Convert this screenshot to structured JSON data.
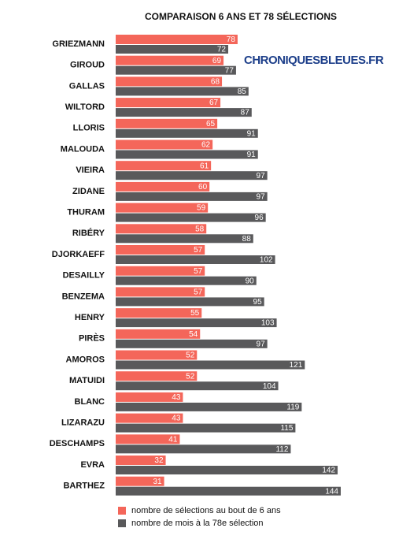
{
  "chart_data": {
    "type": "bar",
    "orientation": "horizontal",
    "title": "COMPARAISON 6 ANS ET 78 SÉLECTIONS",
    "watermark": "CHRONIQUESBLEUES.FR",
    "categories": [
      "GRIEZMANN",
      "GIROUD",
      "GALLAS",
      "WILTORD",
      "LLORIS",
      "MALOUDA",
      "VIEIRA",
      "ZIDANE",
      "THURAM",
      "RIBÉRY",
      "DJORKAEFF",
      "DESAILLY",
      "BENZEMA",
      "HENRY",
      "PIRÈS",
      "AMOROS",
      "MATUIDI",
      "BLANC",
      "LIZARAZU",
      "DESCHAMPS",
      "EVRA",
      "BARTHEZ"
    ],
    "series": [
      {
        "name": "nombre de sélections au bout de 6 ans",
        "color": "#f4665a",
        "values": [
          78,
          69,
          68,
          67,
          65,
          62,
          61,
          60,
          59,
          58,
          57,
          57,
          57,
          55,
          54,
          52,
          52,
          43,
          43,
          41,
          32,
          31
        ]
      },
      {
        "name": "nombre de mois à la 78e sélection",
        "color": "#59595b",
        "values": [
          72,
          77,
          85,
          87,
          91,
          91,
          97,
          97,
          96,
          88,
          102,
          90,
          95,
          103,
          97,
          121,
          104,
          119,
          115,
          112,
          142,
          144
        ]
      }
    ]
  }
}
